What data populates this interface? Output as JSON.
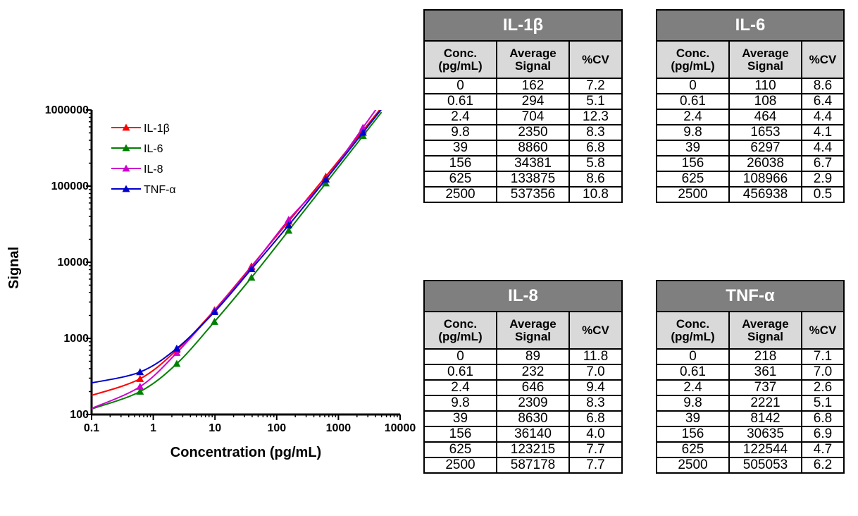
{
  "chart_data": {
    "type": "line",
    "title": "",
    "xlabel": "Concentration (pg/mL)",
    "ylabel": "Signal",
    "xscale": "log",
    "yscale": "log",
    "xlim": [
      0.1,
      10000
    ],
    "ylim": [
      100,
      1000000
    ],
    "x_ticks": [
      "0.1",
      "1",
      "10",
      "100",
      "1000",
      "10000"
    ],
    "y_ticks": [
      "100",
      "1000",
      "10000",
      "100000",
      "1000000"
    ],
    "legend_position": "top-left",
    "x": [
      0.61,
      2.4,
      9.8,
      39,
      156,
      625,
      2500
    ],
    "series": [
      {
        "name": "IL-1β",
        "color": "#ff0000",
        "values": [
          294,
          704,
          2350,
          8860,
          34381,
          133875,
          537356
        ],
        "y_at_xmin": 178
      },
      {
        "name": "IL-6",
        "color": "#008000",
        "values": [
          108,
          464,
          1653,
          6297,
          26038,
          108966,
          456938
        ],
        "plot_values": [
          200,
          464,
          1653,
          6297,
          26038,
          108966,
          456938
        ],
        "y_at_xmin": 118
      },
      {
        "name": "IL-8",
        "color": "#cc00cc",
        "values": [
          232,
          646,
          2309,
          8630,
          36140,
          123215,
          587178
        ],
        "y_at_xmin": 120
      },
      {
        "name": "TNF-α",
        "color": "#0000cc",
        "values": [
          361,
          737,
          2221,
          8142,
          30635,
          122544,
          505053
        ],
        "y_at_xmin": 260
      }
    ]
  },
  "tables": [
    {
      "title": "IL-1β",
      "headers": [
        "Conc.\n(pg/mL)",
        "Average\nSignal",
        "%CV"
      ],
      "rows": [
        [
          "0",
          "162",
          "7.2"
        ],
        [
          "0.61",
          "294",
          "5.1"
        ],
        [
          "2.4",
          "704",
          "12.3"
        ],
        [
          "9.8",
          "2350",
          "8.3"
        ],
        [
          "39",
          "8860",
          "6.8"
        ],
        [
          "156",
          "34381",
          "5.8"
        ],
        [
          "625",
          "133875",
          "8.6"
        ],
        [
          "2500",
          "537356",
          "10.8"
        ]
      ]
    },
    {
      "title": "IL-6",
      "headers": [
        "Conc.\n(pg/mL)",
        "Average\nSignal",
        "%CV"
      ],
      "rows": [
        [
          "0",
          "110",
          "8.6"
        ],
        [
          "0.61",
          "108",
          "6.4"
        ],
        [
          "2.4",
          "464",
          "4.4"
        ],
        [
          "9.8",
          "1653",
          "4.1"
        ],
        [
          "39",
          "6297",
          "4.4"
        ],
        [
          "156",
          "26038",
          "6.7"
        ],
        [
          "625",
          "108966",
          "2.9"
        ],
        [
          "2500",
          "456938",
          "0.5"
        ]
      ]
    },
    {
      "title": "IL-8",
      "headers": [
        "Conc.\n(pg/mL)",
        "Average\nSignal",
        "%CV"
      ],
      "rows": [
        [
          "0",
          "89",
          "11.8"
        ],
        [
          "0.61",
          "232",
          "7.0"
        ],
        [
          "2.4",
          "646",
          "9.4"
        ],
        [
          "9.8",
          "2309",
          "8.3"
        ],
        [
          "39",
          "8630",
          "6.8"
        ],
        [
          "156",
          "36140",
          "4.0"
        ],
        [
          "625",
          "123215",
          "7.7"
        ],
        [
          "2500",
          "587178",
          "7.7"
        ]
      ]
    },
    {
      "title": "TNF-α",
      "headers": [
        "Conc.\n(pg/mL)",
        "Average\nSignal",
        "%CV"
      ],
      "rows": [
        [
          "0",
          "218",
          "7.1"
        ],
        [
          "0.61",
          "361",
          "7.0"
        ],
        [
          "2.4",
          "737",
          "2.6"
        ],
        [
          "9.8",
          "2221",
          "5.1"
        ],
        [
          "39",
          "8142",
          "6.8"
        ],
        [
          "156",
          "30635",
          "6.9"
        ],
        [
          "625",
          "122544",
          "4.7"
        ],
        [
          "2500",
          "505053",
          "6.2"
        ]
      ]
    }
  ]
}
